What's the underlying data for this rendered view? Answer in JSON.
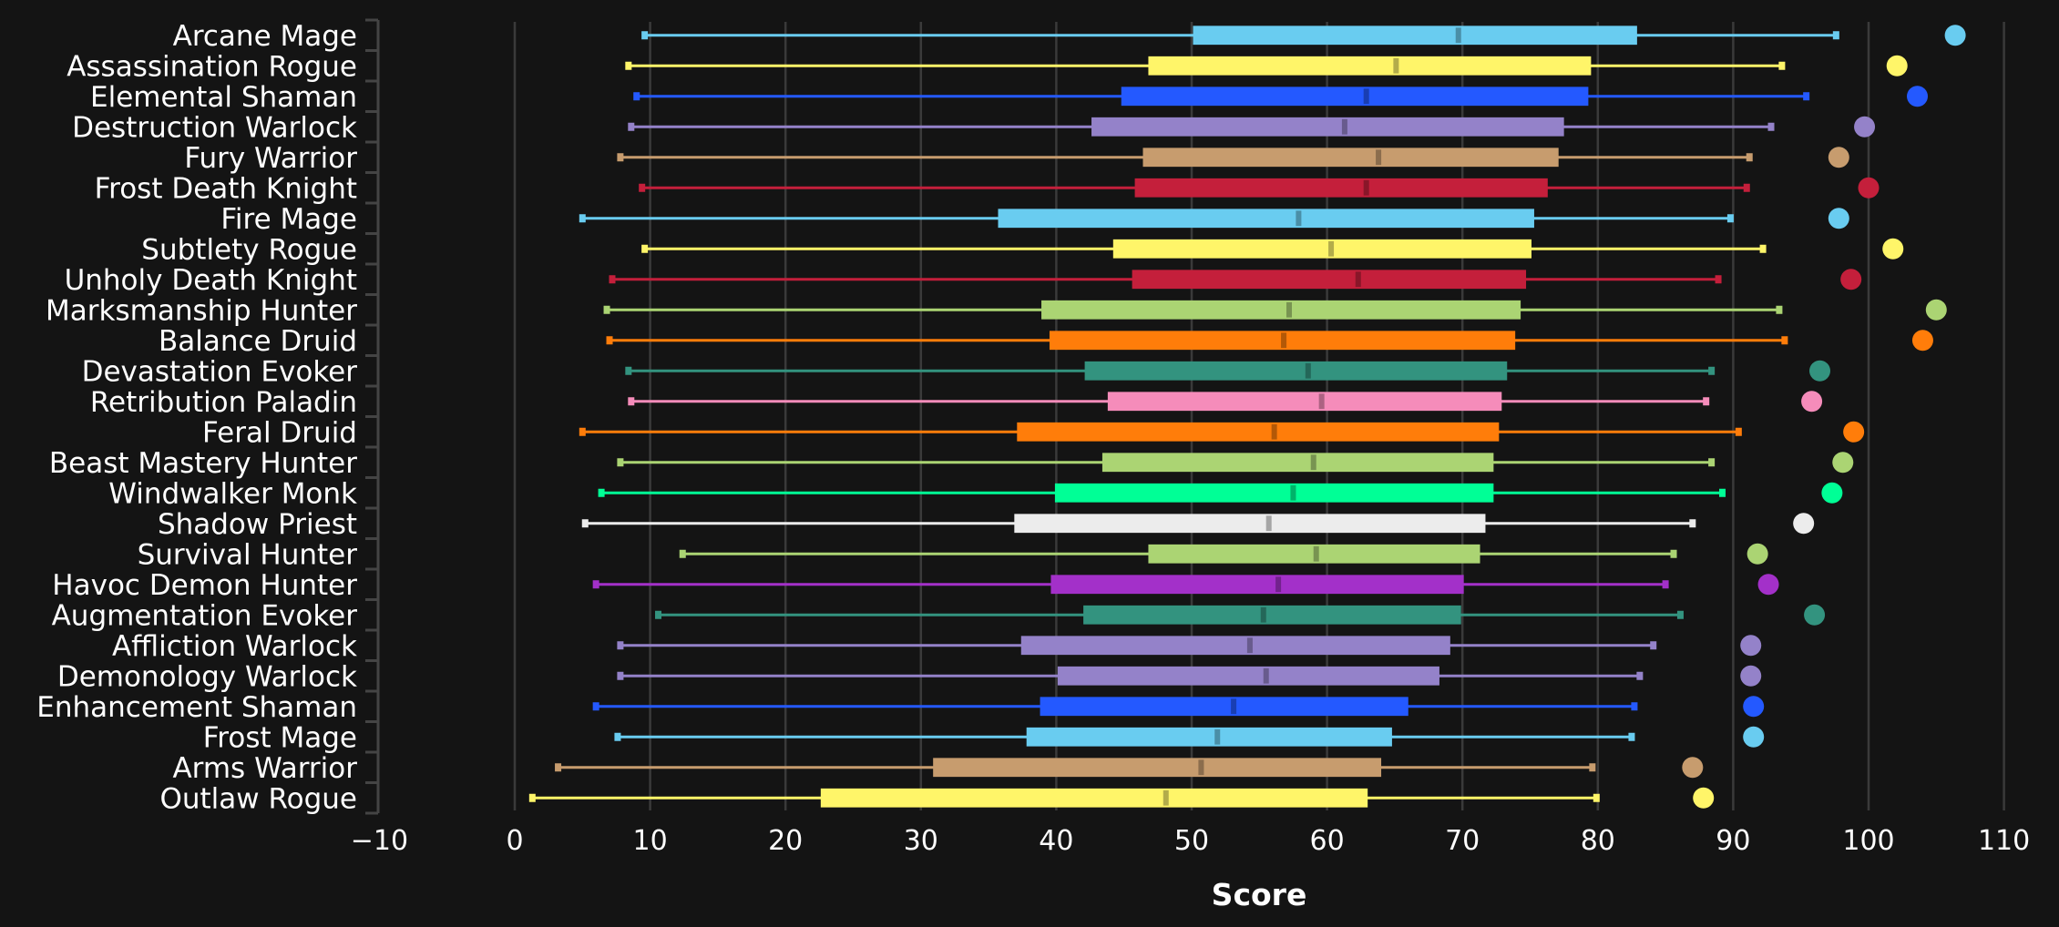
{
  "chart_data": {
    "type": "boxplot",
    "title": "",
    "xlabel": "Score",
    "ylabel": "",
    "xlim": [
      -10,
      110
    ],
    "xticks": [
      -10,
      0,
      10,
      20,
      30,
      40,
      50,
      60,
      70,
      80,
      90,
      100,
      110
    ],
    "xtick_labels": [
      "−10",
      "0",
      "10",
      "20",
      "30",
      "40",
      "50",
      "60",
      "70",
      "80",
      "90",
      "100",
      "110"
    ],
    "grid": "vertical",
    "legend": "none",
    "colors": {
      "background": "#141414",
      "grid": "#3a3a3a",
      "text": "#ffffff"
    },
    "series": [
      {
        "name": "Arcane Mage",
        "color": "#69ccf0",
        "min": 9.6,
        "q1": 50.1,
        "median": 69.7,
        "q3": 82.9,
        "max": 97.6,
        "outlier": 106.4
      },
      {
        "name": "Assassination Rogue",
        "color": "#fff569",
        "min": 8.4,
        "q1": 46.8,
        "median": 65.1,
        "q3": 79.5,
        "max": 93.6,
        "outlier": 102.1
      },
      {
        "name": "Elemental Shaman",
        "color": "#2459ff",
        "min": 9.0,
        "q1": 44.8,
        "median": 62.9,
        "q3": 79.3,
        "max": 95.4,
        "outlier": 103.6
      },
      {
        "name": "Destruction Warlock",
        "color": "#9482c9",
        "min": 8.6,
        "q1": 42.6,
        "median": 61.3,
        "q3": 77.5,
        "max": 92.8,
        "outlier": 99.7
      },
      {
        "name": "Fury Warrior",
        "color": "#c79c6e",
        "min": 7.8,
        "q1": 46.4,
        "median": 63.8,
        "q3": 77.1,
        "max": 91.2,
        "outlier": 97.8
      },
      {
        "name": "Frost Death Knight",
        "color": "#c41f3b",
        "min": 9.4,
        "q1": 45.8,
        "median": 62.9,
        "q3": 76.3,
        "max": 91.0,
        "outlier": 100.0
      },
      {
        "name": "Fire Mage",
        "color": "#69ccf0",
        "min": 5.0,
        "q1": 35.7,
        "median": 57.9,
        "q3": 75.3,
        "max": 89.8,
        "outlier": 97.8
      },
      {
        "name": "Subtlety Rogue",
        "color": "#fff569",
        "min": 9.6,
        "q1": 44.2,
        "median": 60.3,
        "q3": 75.1,
        "max": 92.2,
        "outlier": 101.8
      },
      {
        "name": "Unholy Death Knight",
        "color": "#c41f3b",
        "min": 7.2,
        "q1": 45.6,
        "median": 62.3,
        "q3": 74.7,
        "max": 88.9,
        "outlier": 98.7
      },
      {
        "name": "Marksmanship Hunter",
        "color": "#abd473",
        "min": 6.8,
        "q1": 38.9,
        "median": 57.2,
        "q3": 74.3,
        "max": 93.4,
        "outlier": 105.0
      },
      {
        "name": "Balance Druid",
        "color": "#ff7d0a",
        "min": 7.0,
        "q1": 39.5,
        "median": 56.8,
        "q3": 73.9,
        "max": 93.8,
        "outlier": 104.0
      },
      {
        "name": "Devastation Evoker",
        "color": "#33937f",
        "min": 8.4,
        "q1": 42.1,
        "median": 58.6,
        "q3": 73.3,
        "max": 88.4,
        "outlier": 96.4
      },
      {
        "name": "Retribution Paladin",
        "color": "#f58cba",
        "min": 8.6,
        "q1": 43.8,
        "median": 59.6,
        "q3": 72.9,
        "max": 88.0,
        "outlier": 95.8
      },
      {
        "name": "Feral Druid",
        "color": "#ff7d0a",
        "min": 5.0,
        "q1": 37.1,
        "median": 56.1,
        "q3": 72.7,
        "max": 90.4,
        "outlier": 98.9
      },
      {
        "name": "Beast Mastery Hunter",
        "color": "#abd473",
        "min": 7.8,
        "q1": 43.4,
        "median": 59.0,
        "q3": 72.3,
        "max": 88.4,
        "outlier": 98.1
      },
      {
        "name": "Windwalker Monk",
        "color": "#00ff96",
        "min": 6.4,
        "q1": 39.9,
        "median": 57.5,
        "q3": 72.3,
        "max": 89.2,
        "outlier": 97.3
      },
      {
        "name": "Shadow Priest",
        "color": "#ececec",
        "min": 5.2,
        "q1": 36.9,
        "median": 55.7,
        "q3": 71.7,
        "max": 87.0,
        "outlier": 95.2
      },
      {
        "name": "Survival Hunter",
        "color": "#abd473",
        "min": 12.4,
        "q1": 46.8,
        "median": 59.2,
        "q3": 71.3,
        "max": 85.6,
        "outlier": 91.8
      },
      {
        "name": "Havoc Demon Hunter",
        "color": "#a330c9",
        "min": 6.0,
        "q1": 39.6,
        "median": 56.4,
        "q3": 70.1,
        "max": 85.0,
        "outlier": 92.6
      },
      {
        "name": "Augmentation Evoker",
        "color": "#33937f",
        "min": 10.6,
        "q1": 42.0,
        "median": 55.3,
        "q3": 69.9,
        "max": 86.1,
        "outlier": 96.0
      },
      {
        "name": "Affliction Warlock",
        "color": "#9482c9",
        "min": 7.8,
        "q1": 37.4,
        "median": 54.3,
        "q3": 69.1,
        "max": 84.1,
        "outlier": 91.3
      },
      {
        "name": "Demonology Warlock",
        "color": "#9482c9",
        "min": 7.8,
        "q1": 40.1,
        "median": 55.5,
        "q3": 68.3,
        "max": 83.1,
        "outlier": 91.3
      },
      {
        "name": "Enhancement Shaman",
        "color": "#2459ff",
        "min": 6.0,
        "q1": 38.8,
        "median": 53.1,
        "q3": 66.0,
        "max": 82.7,
        "outlier": 91.5
      },
      {
        "name": "Frost Mage",
        "color": "#69ccf0",
        "min": 7.6,
        "q1": 37.8,
        "median": 51.9,
        "q3": 64.8,
        "max": 82.5,
        "outlier": 91.5
      },
      {
        "name": "Arms Warrior",
        "color": "#c79c6e",
        "min": 3.2,
        "q1": 30.9,
        "median": 50.7,
        "q3": 64.0,
        "max": 79.6,
        "outlier": 87.0
      },
      {
        "name": "Outlaw Rogue",
        "color": "#fff569",
        "min": 1.3,
        "q1": 22.6,
        "median": 48.1,
        "q3": 63.0,
        "max": 79.9,
        "outlier": 87.8
      }
    ]
  }
}
